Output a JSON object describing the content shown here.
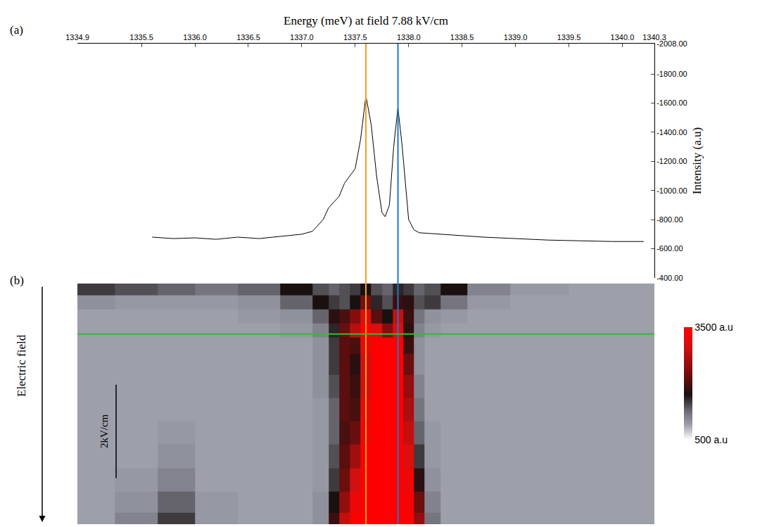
{
  "chart_data": [
    {
      "type": "line",
      "panel": "(a)",
      "x_label": "Energy (meV) at field 7.88 kV/cm",
      "y_label": "Intensity (a.u)",
      "color": "#000000",
      "grid": false,
      "x": [
        1335.6,
        1335.8,
        1336.0,
        1336.2,
        1336.4,
        1336.6,
        1336.8,
        1337.0,
        1337.1,
        1337.2,
        1337.25,
        1337.3,
        1337.35,
        1337.4,
        1337.45,
        1337.5,
        1337.55,
        1337.6,
        1337.65,
        1337.7,
        1337.75,
        1337.78,
        1337.82,
        1337.86,
        1337.9,
        1337.94,
        1338.0,
        1338.05,
        1338.1,
        1338.3,
        1338.5,
        1338.7,
        1339.0,
        1339.3,
        1339.6,
        1339.9,
        1340.2
      ],
      "values": [
        -680,
        -670,
        -675,
        -665,
        -680,
        -670,
        -685,
        -700,
        -720,
        -800,
        -880,
        -920,
        -960,
        -1050,
        -1100,
        -1150,
        -1350,
        -1650,
        -1450,
        -1100,
        -850,
        -820,
        -900,
        -1300,
        -1570,
        -1300,
        -800,
        -730,
        -710,
        -700,
        -690,
        -680,
        -670,
        -660,
        -655,
        -650,
        -650
      ],
      "xlim": [
        1334.9,
        1340.3
      ],
      "xticks": [
        1334.9,
        1335.5,
        {
          "value": 1336,
          "label": "1336.0"
        },
        1336.5,
        {
          "value": 1337,
          "label": "1337.0"
        },
        1337.5,
        {
          "value": 1338,
          "label": "1338.0"
        },
        1338.5,
        {
          "value": 1339,
          "label": "1339.0"
        },
        1339.5,
        {
          "value": 1340,
          "label": "1340.0"
        },
        1340.3
      ],
      "ylim": [
        -400,
        -2008
      ],
      "yticks": [
        {
          "value": -2008,
          "label": "-2008.00"
        },
        {
          "value": -1800,
          "label": "-1800.00"
        },
        {
          "value": -1600,
          "label": "-1600.00"
        },
        {
          "value": -1400,
          "label": "-1400.00"
        },
        {
          "value": -1200,
          "label": "-1200.00"
        },
        {
          "value": -1000,
          "label": "-1000.00"
        },
        {
          "value": -800,
          "label": "-800.00"
        },
        {
          "value": -600,
          "label": "-600.00"
        },
        {
          "value": -400,
          "label": "-400.00"
        }
      ],
      "vertical_lines": [
        {
          "x": 1337.6,
          "color": "#f0a020"
        },
        {
          "x": 1337.9,
          "color": "#1f78c8"
        }
      ]
    },
    {
      "type": "heatmap",
      "panel": "(b)",
      "y_label": "Electric field",
      "tick_labels": false,
      "x": [
        1335.0,
        1335.5,
        1335.8,
        1336.2,
        1336.6,
        1337.0,
        1337.2,
        1337.3,
        1337.4,
        1337.5,
        1337.6,
        1337.7,
        1337.8,
        1337.9,
        1338.0,
        1338.1,
        1338.2,
        1338.4,
        1338.7,
        1339.2,
        1339.8,
        1340.2
      ],
      "y": [
        6.9,
        7.2,
        7.5,
        7.8,
        8.1,
        8.5,
        9.0,
        9.5,
        10.0,
        10.5,
        11.0,
        11.5,
        11.9
      ],
      "z": [
        [
          1500,
          1400,
          1300,
          1200,
          1300,
          1700,
          1400,
          1300,
          1400,
          1500,
          1700,
          1400,
          1300,
          1600,
          1500,
          1300,
          1400,
          1700,
          1100,
          950,
          900,
          900
        ],
        [
          1000,
          950,
          950,
          950,
          1000,
          1300,
          1700,
          1500,
          1400,
          1700,
          2300,
          1600,
          1400,
          1900,
          1800,
          1400,
          1500,
          1200,
          950,
          900,
          900,
          900
        ],
        [
          900,
          900,
          900,
          900,
          950,
          1000,
          1300,
          1800,
          2000,
          2400,
          3100,
          2100,
          1700,
          2900,
          1900,
          1200,
          1000,
          950,
          900,
          900,
          900,
          900
        ],
        [
          900,
          900,
          900,
          900,
          900,
          950,
          1100,
          1600,
          2200,
          2800,
          3500,
          3100,
          2400,
          3100,
          1800,
          1100,
          950,
          900,
          900,
          900,
          900,
          900
        ],
        [
          900,
          900,
          900,
          900,
          900,
          900,
          1000,
          1500,
          2100,
          2000,
          3200,
          3500,
          3500,
          3500,
          1900,
          1000,
          900,
          900,
          900,
          900,
          900,
          900
        ],
        [
          900,
          900,
          900,
          900,
          900,
          900,
          1000,
          1500,
          2100,
          1800,
          3000,
          3500,
          3500,
          3500,
          2200,
          1000,
          900,
          900,
          900,
          900,
          900,
          900
        ],
        [
          900,
          900,
          900,
          900,
          900,
          900,
          1000,
          1400,
          2100,
          1900,
          3000,
          3500,
          3500,
          3500,
          2500,
          1100,
          900,
          900,
          900,
          900,
          900,
          900
        ],
        [
          900,
          900,
          900,
          900,
          900,
          900,
          950,
          1300,
          2100,
          2000,
          3200,
          3500,
          3500,
          3500,
          2700,
          1200,
          900,
          900,
          900,
          900,
          900,
          900
        ],
        [
          900,
          900,
          950,
          900,
          900,
          900,
          950,
          1300,
          2000,
          2200,
          3300,
          3500,
          3500,
          3500,
          2900,
          1300,
          950,
          900,
          900,
          900,
          900,
          900
        ],
        [
          900,
          900,
          1000,
          900,
          900,
          900,
          950,
          1400,
          2100,
          2600,
          3500,
          3500,
          3500,
          3500,
          3100,
          1500,
          950,
          900,
          900,
          900,
          900,
          900
        ],
        [
          900,
          950,
          1100,
          900,
          900,
          900,
          950,
          1500,
          2200,
          3000,
          3500,
          3500,
          3500,
          3500,
          3300,
          1800,
          1000,
          900,
          900,
          900,
          900,
          900
        ],
        [
          900,
          1000,
          1300,
          950,
          900,
          900,
          1000,
          1700,
          2500,
          3300,
          3500,
          3500,
          3500,
          3500,
          3400,
          2200,
          1100,
          900,
          900,
          900,
          900,
          900
        ],
        [
          900,
          1100,
          1500,
          950,
          900,
          900,
          1000,
          1900,
          2900,
          3500,
          3500,
          3500,
          3500,
          3500,
          3500,
          2500,
          1200,
          900,
          900,
          900,
          900,
          900
        ]
      ],
      "xlim": [
        1334.9,
        1340.3
      ],
      "ylim": [
        6.8,
        11.95
      ],
      "colorbar": {
        "range": [
          500,
          3500
        ],
        "ticks": [
          {
            "value": 3500,
            "label": "3500 a.u"
          },
          {
            "value": 500,
            "label": "500 a.u"
          }
        ]
      },
      "field_line": {
        "y": 7.88,
        "color": "#33bb33"
      },
      "scale_bar": {
        "length": 2,
        "label": "2kV/cm"
      }
    }
  ]
}
